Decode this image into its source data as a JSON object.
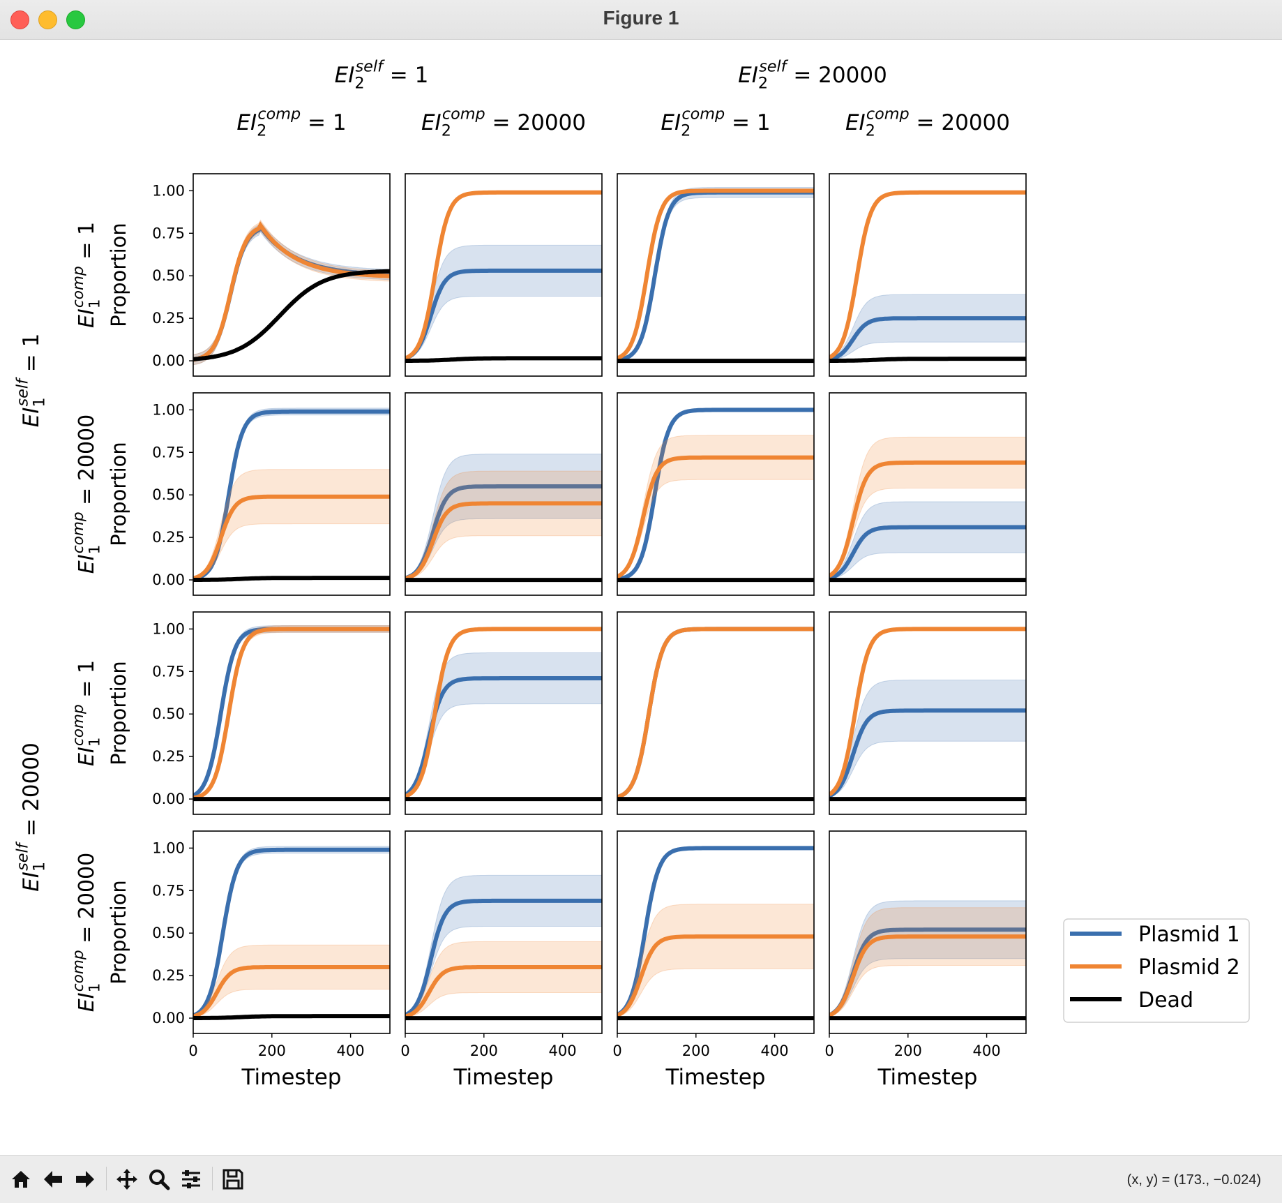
{
  "window": {
    "title": "Figure 1"
  },
  "toolbar": {
    "buttons": [
      {
        "name": "home-icon"
      },
      {
        "name": "back-icon"
      },
      {
        "name": "forward-icon"
      },
      {
        "name": "pan-icon"
      },
      {
        "name": "zoom-icon"
      },
      {
        "name": "configure-subplots-icon"
      },
      {
        "name": "save-icon"
      }
    ],
    "coords": "(x, y) = (173., −0.024)"
  },
  "colors": {
    "plasmid1": "#3a6fae",
    "plasmid2": "#ef8533",
    "dead": "#000000"
  },
  "chart_data": {
    "type": "line",
    "layout": "4x4 grid of subplots",
    "column_group_headers": [
      {
        "base": "EI",
        "sub": "2",
        "sup": "self",
        "value": "1"
      },
      {
        "base": "EI",
        "sub": "2",
        "sup": "self",
        "value": "20000"
      }
    ],
    "column_headers": [
      {
        "base": "EI",
        "sub": "2",
        "sup": "comp",
        "value": "1"
      },
      {
        "base": "EI",
        "sub": "2",
        "sup": "comp",
        "value": "20000"
      },
      {
        "base": "EI",
        "sub": "2",
        "sup": "comp",
        "value": "1"
      },
      {
        "base": "EI",
        "sub": "2",
        "sup": "comp",
        "value": "20000"
      }
    ],
    "row_group_headers": [
      {
        "base": "EI",
        "sub": "1",
        "sup": "self",
        "value": "1"
      },
      {
        "base": "EI",
        "sub": "1",
        "sup": "self",
        "value": "20000"
      }
    ],
    "row_headers": [
      {
        "base": "EI",
        "sub": "1",
        "sup": "comp",
        "value": "1"
      },
      {
        "base": "EI",
        "sub": "1",
        "sup": "comp",
        "value": "20000"
      },
      {
        "base": "EI",
        "sub": "1",
        "sup": "comp",
        "value": "1"
      },
      {
        "base": "EI",
        "sub": "1",
        "sup": "comp",
        "value": "20000"
      }
    ],
    "ylabel": "Proportion",
    "xlabel": "Timestep",
    "xlim": [
      0,
      500
    ],
    "ylim": [
      -0.09,
      1.1
    ],
    "xticks": [
      0,
      200,
      400
    ],
    "yticks": [
      0.0,
      0.25,
      0.5,
      0.75,
      1.0
    ],
    "ytick_labels": [
      "0.00",
      "0.25",
      "0.50",
      "0.75",
      "1.00"
    ],
    "legend": {
      "position": "right",
      "entries": [
        {
          "label": "Plasmid 1",
          "color": "#3a6fae"
        },
        {
          "label": "Plasmid 2",
          "color": "#ef8533"
        },
        {
          "label": "Dead",
          "color": "#000000"
        }
      ]
    },
    "panels": [
      {
        "row": 0,
        "col": 0,
        "special": "peak",
        "plasmid1": {
          "peak": 0.79,
          "peak_t": 170,
          "final": 0.5,
          "band": 0.03
        },
        "plasmid2": {
          "peak": 0.8,
          "peak_t": 170,
          "final": 0.49,
          "band": 0.04
        },
        "dead": {
          "final": 0.53,
          "mid_t": 220
        }
      },
      {
        "row": 0,
        "col": 1,
        "plasmid1": {
          "final": 0.53,
          "t50": 65,
          "band": 0.15
        },
        "plasmid2": {
          "final": 0.99,
          "t50": 75,
          "band": 0.01
        },
        "dead": {
          "final": 0.015
        }
      },
      {
        "row": 0,
        "col": 2,
        "plasmid1": {
          "final": 0.99,
          "t50": 95,
          "band": 0.03
        },
        "plasmid2": {
          "final": 1.0,
          "t50": 75,
          "band": 0.01
        },
        "dead": {
          "final": 0.0
        }
      },
      {
        "row": 0,
        "col": 3,
        "plasmid1": {
          "final": 0.25,
          "t50": 60,
          "band": 0.14
        },
        "plasmid2": {
          "final": 0.99,
          "t50": 70,
          "band": 0.01
        },
        "dead": {
          "final": 0.012
        }
      },
      {
        "row": 1,
        "col": 0,
        "plasmid1": {
          "final": 0.99,
          "t50": 90,
          "band": 0.02
        },
        "plasmid2": {
          "final": 0.49,
          "t50": 70,
          "band": 0.16
        },
        "dead": {
          "final": 0.012
        }
      },
      {
        "row": 1,
        "col": 1,
        "plasmid1": {
          "final": 0.55,
          "t50": 70,
          "band": 0.19
        },
        "plasmid2": {
          "final": 0.45,
          "t50": 70,
          "band": 0.19
        },
        "dead": {
          "final": 0.0
        }
      },
      {
        "row": 1,
        "col": 2,
        "plasmid1": {
          "final": 1.0,
          "t50": 95,
          "band": 0.01
        },
        "plasmid2": {
          "final": 0.72,
          "t50": 65,
          "band": 0.13
        },
        "dead": {
          "final": 0.0
        }
      },
      {
        "row": 1,
        "col": 3,
        "plasmid1": {
          "final": 0.31,
          "t50": 60,
          "band": 0.15
        },
        "plasmid2": {
          "final": 0.69,
          "t50": 60,
          "band": 0.15
        },
        "dead": {
          "final": 0.0
        }
      },
      {
        "row": 2,
        "col": 0,
        "plasmid1": {
          "final": 1.0,
          "t50": 70,
          "band": 0.02
        },
        "plasmid2": {
          "final": 1.0,
          "t50": 90,
          "band": 0.02
        },
        "dead": {
          "final": 0.0
        }
      },
      {
        "row": 2,
        "col": 1,
        "plasmid1": {
          "final": 0.71,
          "t50": 60,
          "band": 0.15
        },
        "plasmid2": {
          "final": 1.0,
          "t50": 75,
          "band": 0.01
        },
        "dead": {
          "final": 0.0
        }
      },
      {
        "row": 2,
        "col": 2,
        "plasmid1": {
          "final": 1.0,
          "t50": 80,
          "band": 0.01
        },
        "plasmid2": {
          "final": 1.0,
          "t50": 80,
          "band": 0.01
        },
        "dead": {
          "final": 0.0
        }
      },
      {
        "row": 2,
        "col": 3,
        "plasmid1": {
          "final": 0.52,
          "t50": 60,
          "band": 0.18
        },
        "plasmid2": {
          "final": 1.0,
          "t50": 65,
          "band": 0.01
        },
        "dead": {
          "final": 0.0
        }
      },
      {
        "row": 3,
        "col": 0,
        "plasmid1": {
          "final": 0.99,
          "t50": 75,
          "band": 0.02
        },
        "plasmid2": {
          "final": 0.3,
          "t50": 60,
          "band": 0.13
        },
        "dead": {
          "final": 0.012
        }
      },
      {
        "row": 3,
        "col": 1,
        "plasmid1": {
          "final": 0.69,
          "t50": 65,
          "band": 0.15
        },
        "plasmid2": {
          "final": 0.3,
          "t50": 60,
          "band": 0.15
        },
        "dead": {
          "final": 0.0
        }
      },
      {
        "row": 3,
        "col": 2,
        "plasmid1": {
          "final": 1.0,
          "t50": 70,
          "band": 0.01
        },
        "plasmid2": {
          "final": 0.48,
          "t50": 60,
          "band": 0.19
        },
        "dead": {
          "final": 0.0
        }
      },
      {
        "row": 3,
        "col": 3,
        "plasmid1": {
          "final": 0.52,
          "t50": 60,
          "band": 0.17
        },
        "plasmid2": {
          "final": 0.48,
          "t50": 60,
          "band": 0.17
        },
        "dead": {
          "final": 0.0
        }
      }
    ]
  }
}
